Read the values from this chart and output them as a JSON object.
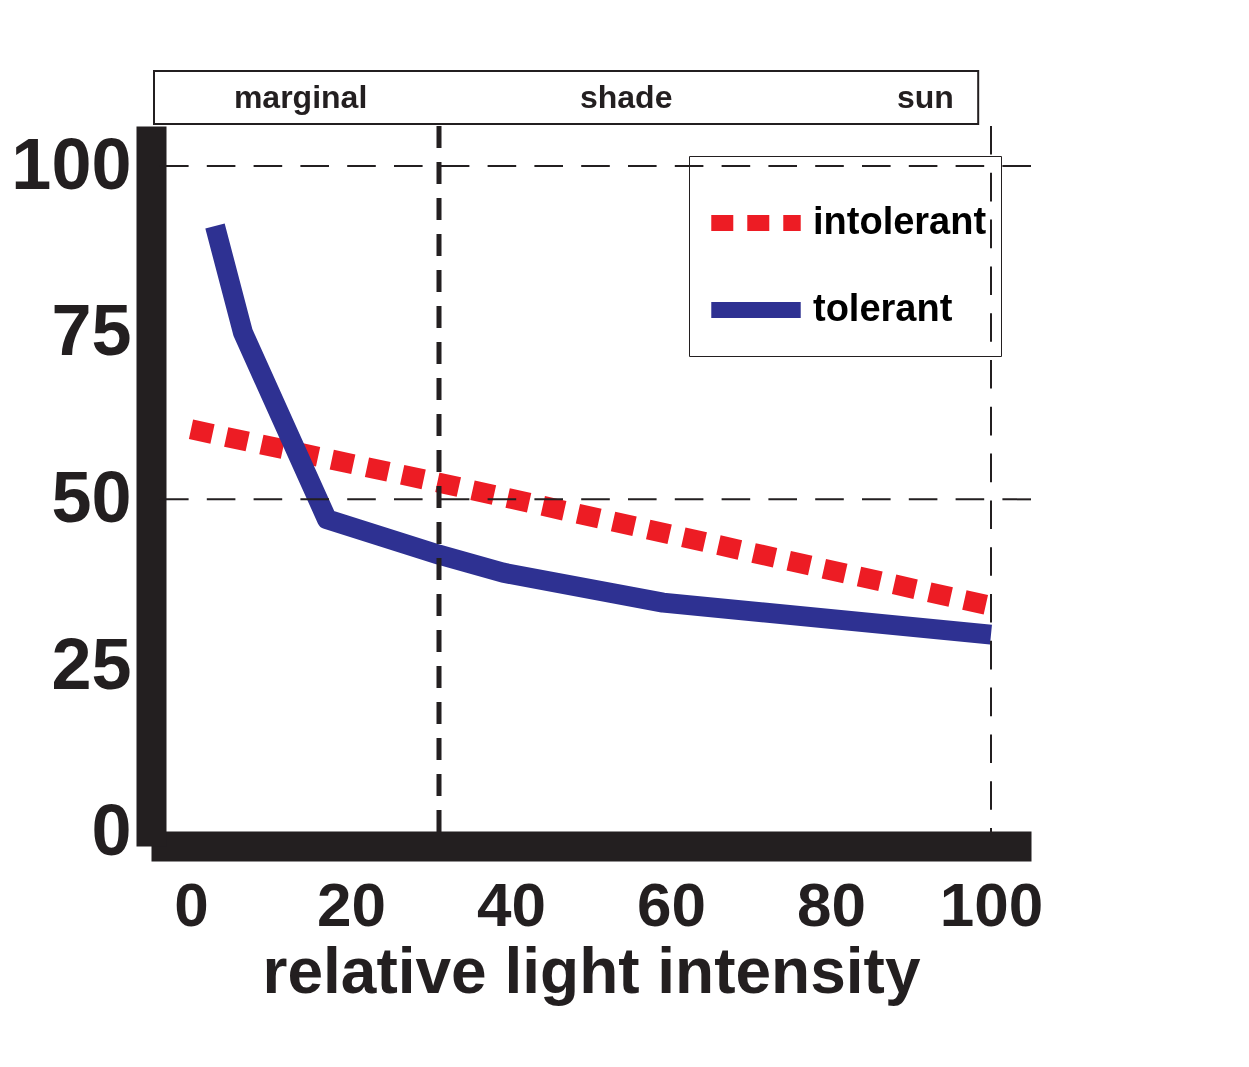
{
  "chart_data": {
    "type": "line",
    "xlabel": "relative  light  intensity",
    "xlim": [
      -5,
      105
    ],
    "ylim": [
      -2,
      106
    ],
    "xticks": [
      0,
      20,
      40,
      60,
      80,
      100
    ],
    "yticks": [
      0,
      25,
      50,
      75,
      100
    ],
    "grid": false,
    "legend": "top right",
    "marker": "none",
    "annotations": [
      "marginal",
      "shade",
      "sun"
    ],
    "ref_lines": [
      {
        "axis": "y",
        "value": 100,
        "line_style": "dashed"
      },
      {
        "axis": "y",
        "value": 50,
        "line_style": "dashed"
      },
      {
        "axis": "x",
        "value": 31,
        "line_style": "dashed"
      },
      {
        "axis": "x",
        "value": 100,
        "line_style": "dashed"
      }
    ],
    "series": [
      {
        "name": "intolerant",
        "color": "#ed1c24",
        "line_style": "dashed",
        "x": [
          0,
          31,
          100
        ],
        "values": [
          60.5,
          52.5,
          34
        ]
      },
      {
        "name": "tolerant",
        "color": "#2e3192",
        "line_style": "solid",
        "x": [
          3,
          6.5,
          17,
          31,
          39,
          59,
          100
        ],
        "values": [
          91,
          75,
          47,
          41.7,
          39,
          34.5,
          29.7
        ]
      }
    ]
  }
}
